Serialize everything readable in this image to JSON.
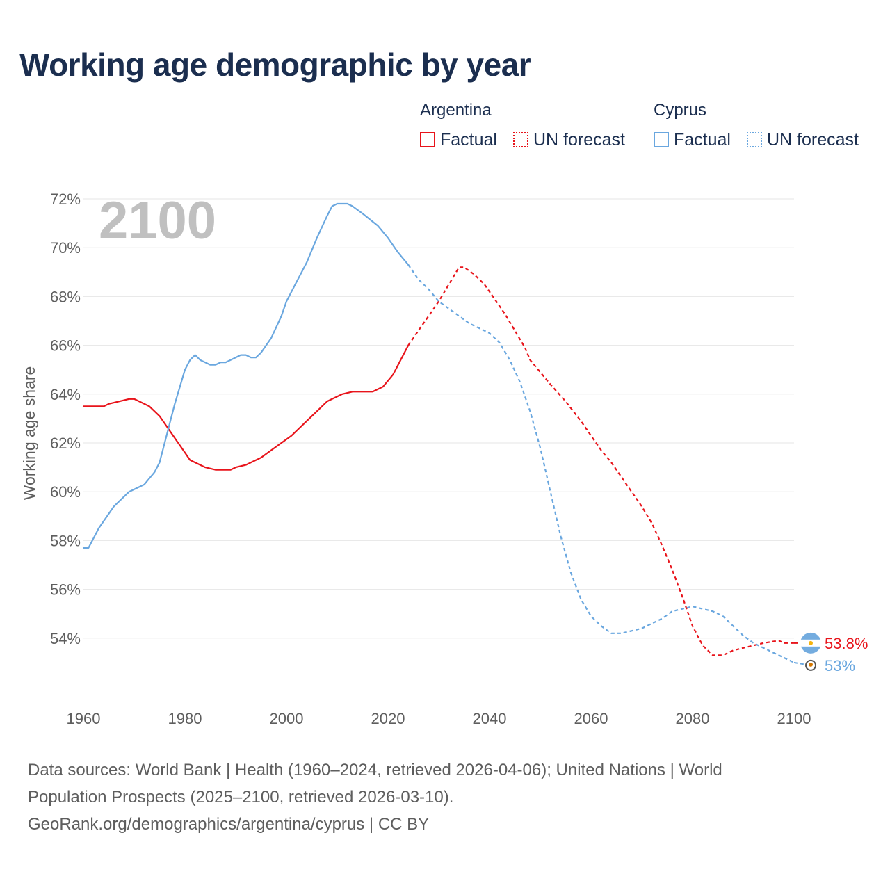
{
  "title": "Working age demographic by year",
  "legend": {
    "groups": [
      {
        "name": "Argentina",
        "factual_label": "Factual",
        "forecast_label": "UN forecast"
      },
      {
        "name": "Cyprus",
        "factual_label": "Factual",
        "forecast_label": "UN forecast"
      }
    ]
  },
  "year_display": "2100",
  "source": {
    "line1": "Data sources: World Bank | Health (1960–2024, retrieved 2026-04-06); United Nations | World",
    "line2": "Population Prospects (2025–2100, retrieved 2026-03-10).",
    "line3": "GeoRank.org/demographics/argentina/cyprus | CC BY"
  },
  "colors": {
    "argentina": "#e8141b",
    "cyprus": "#6aa7df",
    "title": "#1b2e4f",
    "grid": "#e6e6e6",
    "year": "#c0c0c0"
  },
  "chart_data": {
    "type": "line",
    "title": "Working age demographic by year",
    "xlabel": "",
    "ylabel": "Working age share",
    "xlim": [
      1960,
      2100
    ],
    "ylim": [
      52,
      72
    ],
    "y_ticks": [
      54,
      56,
      58,
      60,
      62,
      64,
      66,
      68,
      70,
      72
    ],
    "y_tick_labels": [
      "54%",
      "56%",
      "58%",
      "60%",
      "62%",
      "64%",
      "66%",
      "68%",
      "70%",
      "72%"
    ],
    "x_ticks": [
      1960,
      1980,
      2000,
      2020,
      2040,
      2060,
      2080,
      2100
    ],
    "x_tick_labels": [
      "1960",
      "1980",
      "2000",
      "2020",
      "2040",
      "2060",
      "2080",
      "2100"
    ],
    "factual_end_year": 2024,
    "series": [
      {
        "name": "Argentina",
        "color": "#e8141b",
        "end_label": "53.8%",
        "end_icon": "argentina-flag-icon",
        "points": [
          [
            1960,
            63.5
          ],
          [
            1962,
            63.5
          ],
          [
            1964,
            63.5
          ],
          [
            1965,
            63.6
          ],
          [
            1967,
            63.7
          ],
          [
            1969,
            63.8
          ],
          [
            1970,
            63.8
          ],
          [
            1973,
            63.5
          ],
          [
            1975,
            63.1
          ],
          [
            1978,
            62.2
          ],
          [
            1980,
            61.6
          ],
          [
            1981,
            61.3
          ],
          [
            1983,
            61.1
          ],
          [
            1984,
            61.0
          ],
          [
            1986,
            60.9
          ],
          [
            1989,
            60.9
          ],
          [
            1990,
            61.0
          ],
          [
            1992,
            61.1
          ],
          [
            1995,
            61.4
          ],
          [
            1997,
            61.7
          ],
          [
            1999,
            62.0
          ],
          [
            2001,
            62.3
          ],
          [
            2004,
            62.9
          ],
          [
            2006,
            63.3
          ],
          [
            2008,
            63.7
          ],
          [
            2011,
            64.0
          ],
          [
            2013,
            64.1
          ],
          [
            2017,
            64.1
          ],
          [
            2019,
            64.3
          ],
          [
            2021,
            64.8
          ],
          [
            2022,
            65.2
          ],
          [
            2024,
            66.0
          ],
          [
            2026,
            66.6
          ],
          [
            2028,
            67.2
          ],
          [
            2030,
            67.8
          ],
          [
            2032,
            68.5
          ],
          [
            2034,
            69.2
          ],
          [
            2035,
            69.2
          ],
          [
            2037,
            68.9
          ],
          [
            2039,
            68.5
          ],
          [
            2041,
            67.9
          ],
          [
            2043,
            67.3
          ],
          [
            2045,
            66.6
          ],
          [
            2047,
            65.9
          ],
          [
            2048,
            65.4
          ],
          [
            2050,
            64.9
          ],
          [
            2052,
            64.4
          ],
          [
            2055,
            63.7
          ],
          [
            2058,
            62.9
          ],
          [
            2060,
            62.3
          ],
          [
            2062,
            61.7
          ],
          [
            2064,
            61.2
          ],
          [
            2066,
            60.6
          ],
          [
            2068,
            60.0
          ],
          [
            2070,
            59.4
          ],
          [
            2072,
            58.7
          ],
          [
            2074,
            57.8
          ],
          [
            2076,
            56.8
          ],
          [
            2078,
            55.7
          ],
          [
            2080,
            54.5
          ],
          [
            2082,
            53.7
          ],
          [
            2084,
            53.3
          ],
          [
            2086,
            53.3
          ],
          [
            2088,
            53.5
          ],
          [
            2090,
            53.6
          ],
          [
            2092,
            53.7
          ],
          [
            2094,
            53.8
          ],
          [
            2097,
            53.9
          ],
          [
            2098,
            53.8
          ],
          [
            2100,
            53.8
          ]
        ]
      },
      {
        "name": "Cyprus",
        "color": "#6aa7df",
        "end_label": "53%",
        "end_icon": "cyprus-flag-icon",
        "points": [
          [
            1960,
            57.7
          ],
          [
            1961,
            57.7
          ],
          [
            1963,
            58.5
          ],
          [
            1965,
            59.1
          ],
          [
            1966,
            59.4
          ],
          [
            1968,
            59.8
          ],
          [
            1969,
            60.0
          ],
          [
            1972,
            60.3
          ],
          [
            1974,
            60.8
          ],
          [
            1975,
            61.2
          ],
          [
            1976,
            62.0
          ],
          [
            1977,
            62.8
          ],
          [
            1978,
            63.6
          ],
          [
            1979,
            64.3
          ],
          [
            1980,
            65.0
          ],
          [
            1981,
            65.4
          ],
          [
            1982,
            65.6
          ],
          [
            1983,
            65.4
          ],
          [
            1985,
            65.2
          ],
          [
            1986,
            65.2
          ],
          [
            1987,
            65.3
          ],
          [
            1988,
            65.3
          ],
          [
            1991,
            65.6
          ],
          [
            1992,
            65.6
          ],
          [
            1993,
            65.5
          ],
          [
            1994,
            65.5
          ],
          [
            1995,
            65.7
          ],
          [
            1997,
            66.3
          ],
          [
            1999,
            67.2
          ],
          [
            2000,
            67.8
          ],
          [
            2002,
            68.6
          ],
          [
            2004,
            69.4
          ],
          [
            2006,
            70.4
          ],
          [
            2008,
            71.3
          ],
          [
            2009,
            71.7
          ],
          [
            2010,
            71.8
          ],
          [
            2012,
            71.8
          ],
          [
            2013,
            71.7
          ],
          [
            2015,
            71.4
          ],
          [
            2018,
            70.9
          ],
          [
            2020,
            70.4
          ],
          [
            2022,
            69.8
          ],
          [
            2024,
            69.3
          ],
          [
            2026,
            68.7
          ],
          [
            2028,
            68.3
          ],
          [
            2030,
            67.8
          ],
          [
            2032,
            67.5
          ],
          [
            2034,
            67.2
          ],
          [
            2036,
            66.9
          ],
          [
            2038,
            66.7
          ],
          [
            2040,
            66.5
          ],
          [
            2042,
            66.1
          ],
          [
            2044,
            65.4
          ],
          [
            2046,
            64.5
          ],
          [
            2048,
            63.3
          ],
          [
            2050,
            61.8
          ],
          [
            2052,
            60.0
          ],
          [
            2054,
            58.2
          ],
          [
            2056,
            56.7
          ],
          [
            2058,
            55.6
          ],
          [
            2060,
            54.9
          ],
          [
            2062,
            54.5
          ],
          [
            2064,
            54.2
          ],
          [
            2066,
            54.2
          ],
          [
            2068,
            54.3
          ],
          [
            2070,
            54.4
          ],
          [
            2072,
            54.6
          ],
          [
            2074,
            54.8
          ],
          [
            2076,
            55.1
          ],
          [
            2078,
            55.2
          ],
          [
            2080,
            55.3
          ],
          [
            2082,
            55.2
          ],
          [
            2084,
            55.1
          ],
          [
            2086,
            54.9
          ],
          [
            2088,
            54.5
          ],
          [
            2090,
            54.1
          ],
          [
            2092,
            53.8
          ],
          [
            2095,
            53.5
          ],
          [
            2097,
            53.3
          ],
          [
            2100,
            53.0
          ]
        ]
      }
    ]
  }
}
